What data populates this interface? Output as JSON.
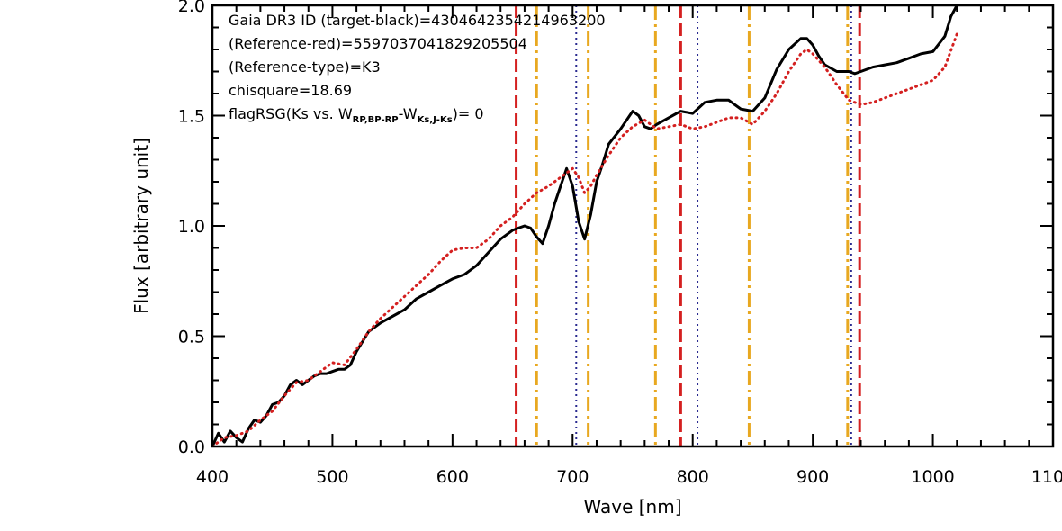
{
  "chart_data": {
    "type": "line",
    "xlabel": "Wave [nm]",
    "ylabel": "Flux [arbitrary unit]",
    "xlim": [
      400,
      1100
    ],
    "ylim": [
      0,
      2.0
    ],
    "x_ticks": [
      400,
      500,
      600,
      700,
      800,
      900,
      1000,
      1100
    ],
    "x_tick_labels": [
      "400",
      "500",
      "600",
      "700",
      "800",
      "900",
      "1000",
      "1100"
    ],
    "y_ticks": [
      0.0,
      0.5,
      1.0,
      1.5,
      2.0
    ],
    "y_tick_labels": [
      "0.0",
      "0.5",
      "1.0",
      "1.5",
      "2.0"
    ],
    "grid": false,
    "annotations": {
      "line1": "Gaia DR3 ID (target-black)=4304642354214963200",
      "line2": "(Reference-red)=5597037041829205504",
      "line3": "(Reference-type)=K3",
      "line4": "chisquare=18.69",
      "flag_prefix": "flagRSG(Ks vs. W",
      "flag_sub1": "RP,BP-RP",
      "flag_mid": "-W",
      "flag_sub2": "Ks,J-Ks",
      "flag_suffix": ")= 0"
    },
    "series": [
      {
        "color": "#000000",
        "style": "solid",
        "x": [
          400,
          405,
          410,
          415,
          420,
          425,
          430,
          435,
          440,
          445,
          450,
          455,
          460,
          465,
          470,
          475,
          480,
          485,
          490,
          495,
          500,
          505,
          510,
          515,
          520,
          530,
          540,
          550,
          560,
          570,
          580,
          590,
          600,
          610,
          620,
          630,
          640,
          650,
          655,
          660,
          665,
          670,
          675,
          680,
          685,
          690,
          695,
          700,
          705,
          710,
          715,
          720,
          725,
          730,
          740,
          750,
          755,
          760,
          765,
          770,
          780,
          790,
          800,
          810,
          820,
          830,
          835,
          840,
          850,
          860,
          870,
          880,
          890,
          895,
          900,
          905,
          910,
          920,
          930,
          935,
          940,
          950,
          960,
          970,
          980,
          990,
          1000,
          1010,
          1015,
          1020
        ],
        "y": [
          0.0,
          0.06,
          0.02,
          0.07,
          0.04,
          0.02,
          0.08,
          0.12,
          0.11,
          0.14,
          0.19,
          0.2,
          0.23,
          0.28,
          0.3,
          0.28,
          0.3,
          0.32,
          0.33,
          0.33,
          0.34,
          0.35,
          0.35,
          0.37,
          0.43,
          0.52,
          0.56,
          0.59,
          0.62,
          0.67,
          0.7,
          0.73,
          0.76,
          0.78,
          0.82,
          0.88,
          0.94,
          0.98,
          0.99,
          1.0,
          0.99,
          0.95,
          0.92,
          1.0,
          1.1,
          1.18,
          1.26,
          1.18,
          1.02,
          0.94,
          1.05,
          1.2,
          1.28,
          1.37,
          1.44,
          1.52,
          1.5,
          1.45,
          1.44,
          1.46,
          1.49,
          1.52,
          1.51,
          1.56,
          1.57,
          1.57,
          1.55,
          1.53,
          1.52,
          1.58,
          1.71,
          1.8,
          1.85,
          1.85,
          1.82,
          1.77,
          1.73,
          1.7,
          1.7,
          1.69,
          1.7,
          1.72,
          1.73,
          1.74,
          1.76,
          1.78,
          1.79,
          1.86,
          1.95,
          2.0
        ]
      },
      {
        "color": "#d42020",
        "style": "dotted",
        "x": [
          400,
          410,
          420,
          430,
          440,
          450,
          460,
          470,
          480,
          490,
          500,
          510,
          520,
          530,
          540,
          550,
          560,
          570,
          580,
          590,
          600,
          610,
          620,
          630,
          640,
          650,
          660,
          670,
          680,
          690,
          700,
          705,
          710,
          715,
          720,
          730,
          740,
          750,
          760,
          770,
          780,
          790,
          800,
          810,
          820,
          830,
          840,
          850,
          860,
          870,
          880,
          890,
          895,
          900,
          910,
          920,
          930,
          940,
          950,
          960,
          970,
          980,
          990,
          1000,
          1010,
          1020
        ],
        "y": [
          0.0,
          0.04,
          0.05,
          0.07,
          0.12,
          0.16,
          0.23,
          0.29,
          0.3,
          0.34,
          0.38,
          0.37,
          0.44,
          0.52,
          0.58,
          0.63,
          0.68,
          0.73,
          0.78,
          0.84,
          0.89,
          0.9,
          0.9,
          0.94,
          1.0,
          1.04,
          1.1,
          1.15,
          1.18,
          1.22,
          1.26,
          1.22,
          1.15,
          1.18,
          1.23,
          1.32,
          1.4,
          1.45,
          1.48,
          1.44,
          1.45,
          1.46,
          1.44,
          1.45,
          1.47,
          1.49,
          1.49,
          1.46,
          1.52,
          1.6,
          1.7,
          1.78,
          1.8,
          1.78,
          1.72,
          1.64,
          1.57,
          1.55,
          1.56,
          1.58,
          1.6,
          1.62,
          1.64,
          1.66,
          1.72,
          1.87
        ]
      }
    ],
    "vertical_lines": [
      {
        "x": 653,
        "color": "#d42020",
        "style": "dashed"
      },
      {
        "x": 670,
        "color": "#e8a820",
        "style": "dashdot"
      },
      {
        "x": 703,
        "color": "#2a2a90",
        "style": "dotted"
      },
      {
        "x": 713,
        "color": "#e8a820",
        "style": "dashdot"
      },
      {
        "x": 769,
        "color": "#e8a820",
        "style": "dashdot"
      },
      {
        "x": 790,
        "color": "#d42020",
        "style": "dashed"
      },
      {
        "x": 804,
        "color": "#2a2a90",
        "style": "dotted"
      },
      {
        "x": 847,
        "color": "#e8a820",
        "style": "dashdot"
      },
      {
        "x": 929,
        "color": "#e8a820",
        "style": "dashdot"
      },
      {
        "x": 932,
        "color": "#2a2a90",
        "style": "dotted"
      },
      {
        "x": 939,
        "color": "#d42020",
        "style": "dashed"
      }
    ]
  }
}
